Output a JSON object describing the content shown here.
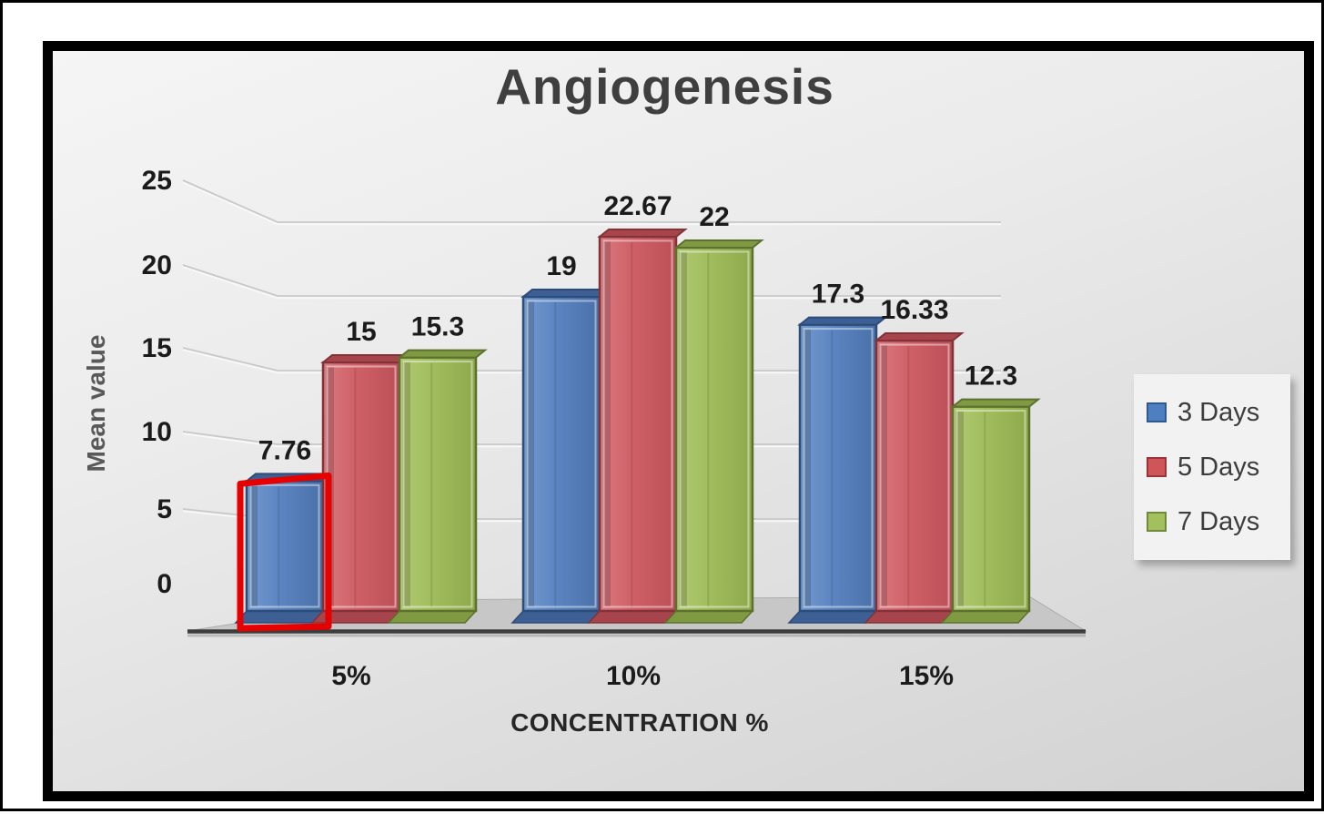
{
  "title": "Angiogenesis",
  "chart_data": {
    "type": "bar",
    "title": "Angiogenesis",
    "xlabel": "CONCENTRATION %",
    "ylabel": "Mean value",
    "categories": [
      "5%",
      "10%",
      "15%"
    ],
    "y_ticks": [
      "0",
      "5",
      "10",
      "15",
      "20",
      "25"
    ],
    "ylim": [
      0,
      25
    ],
    "grid": true,
    "legend_position": "right",
    "series": [
      {
        "name": "3 Days",
        "values": [
          7.76,
          19,
          17.3
        ],
        "labels": [
          "7.76",
          "19",
          "17.3"
        ],
        "color": "#5b84c0",
        "color_light": "#7399cd",
        "color_dark": "#4a70a8",
        "color_top": "#3d5f94",
        "color_border": "#2c4d79"
      },
      {
        "name": "5 Days",
        "values": [
          15,
          22.67,
          16.33
        ],
        "labels": [
          "15",
          "22.67",
          "16.33"
        ],
        "color": "#cf5f66",
        "color_light": "#da7a80",
        "color_dark": "#bb4f57",
        "color_top": "#a8454c",
        "color_border": "#823337"
      },
      {
        "name": "7 Days",
        "values": [
          15.3,
          22,
          12.3
        ],
        "labels": [
          "15.3",
          "22",
          "12.3"
        ],
        "color": "#a0bc5c",
        "color_light": "#b2ca73",
        "color_dark": "#8da94b",
        "color_top": "#7f9a41",
        "color_border": "#5c7030"
      }
    ],
    "annotation": {
      "type": "highlight-box",
      "series": "3 Days",
      "category": "5%",
      "color": "#e60000"
    }
  },
  "legend": {
    "items": [
      {
        "label": "3 Days",
        "color": "#4e7fc0",
        "border": "#2e5a8f"
      },
      {
        "label": "5 Days",
        "color": "#d05558",
        "border": "#9c3338"
      },
      {
        "label": "7 Days",
        "color": "#a2c05e",
        "border": "#71883d"
      }
    ]
  },
  "colors": {
    "wall": "#e8e8e8",
    "floor": "#c7c7c7",
    "baseline": "#3d3d3d",
    "gridline": "#c9c9c9",
    "title_text": "#3f3f3f",
    "tick_text": "#1b1b1b",
    "data_label_text": "#1b1b1b",
    "y_axis_title_text": "#595959",
    "x_axis_title_text": "#262626"
  }
}
